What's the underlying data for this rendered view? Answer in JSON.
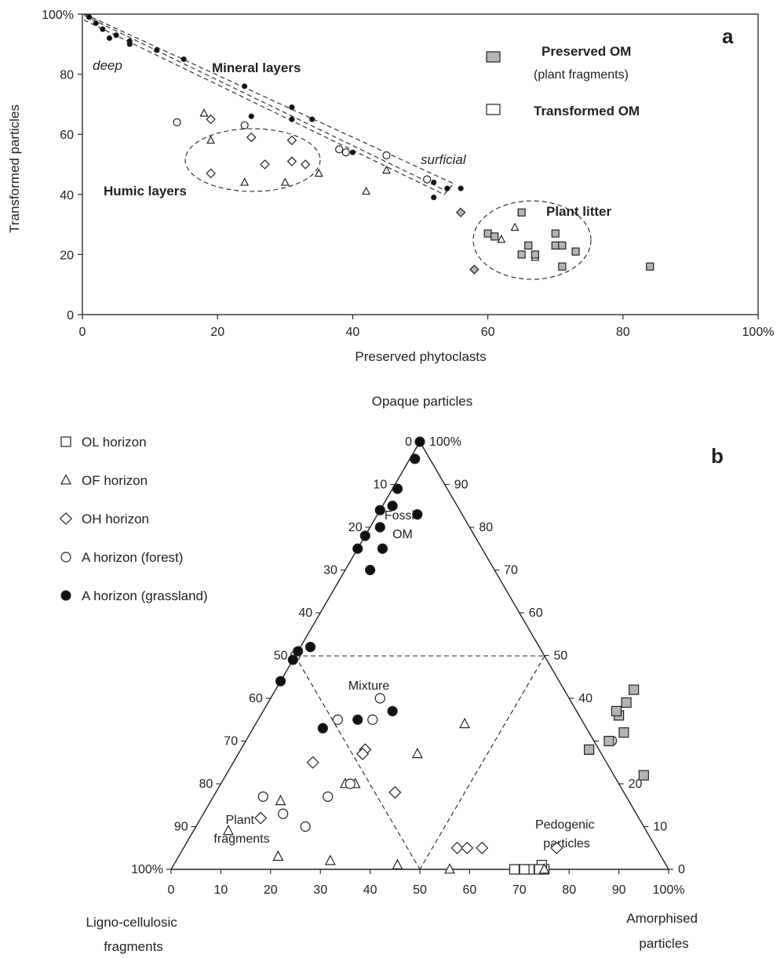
{
  "figure": {
    "panel_a_label": "a",
    "panel_b_label": "b"
  },
  "colors": {
    "ink": "#222222",
    "preserved_fill": "#b4b4b4",
    "open_fill": "#ffffff",
    "filled": "#111111"
  },
  "chart_data": [
    {
      "type": "scatter",
      "panel": "a",
      "xlabel": "Preserved phytoclasts",
      "ylabel": "Transformed particles",
      "xlim": [
        0,
        100
      ],
      "ylim": [
        0,
        100
      ],
      "x_ticks": [
        "0",
        "20",
        "40",
        "60",
        "80",
        "100%"
      ],
      "y_ticks": [
        "0",
        "20",
        "40",
        "60",
        "80",
        "100%"
      ],
      "grid": false,
      "legend": {
        "placement": "top-right",
        "entries": [
          {
            "label": "Preserved OM",
            "sublabel": "(plant fragments)",
            "marker": "square-gray"
          },
          {
            "label": "Transformed OM",
            "marker": "square-open"
          }
        ]
      },
      "annotations": {
        "mineral": "Mineral layers",
        "humic": "Humic layers",
        "litter": "Plant litter",
        "deep": "deep",
        "surficial": "surficial"
      },
      "series": [
        {
          "marker": "dot-filled",
          "points": [
            [
              1,
              99
            ],
            [
              2,
              97
            ],
            [
              3,
              95
            ],
            [
              4,
              92
            ],
            [
              5,
              93
            ],
            [
              7,
              91
            ],
            [
              7,
              90
            ],
            [
              11,
              88
            ],
            [
              15,
              85
            ],
            [
              24,
              76
            ],
            [
              25,
              66
            ],
            [
              31,
              69
            ],
            [
              31,
              65
            ],
            [
              34,
              65
            ],
            [
              40,
              54
            ],
            [
              52,
              44
            ],
            [
              52,
              39
            ],
            [
              54,
              42
            ],
            [
              56,
              42
            ]
          ]
        },
        {
          "marker": "circle-open",
          "points": [
            [
              14,
              64
            ],
            [
              24,
              63
            ],
            [
              38,
              55
            ],
            [
              39,
              54
            ],
            [
              45,
              53
            ],
            [
              51,
              45
            ]
          ]
        },
        {
          "marker": "triangle-open",
          "points": [
            [
              18,
              67
            ],
            [
              19,
              58
            ],
            [
              24,
              44
            ],
            [
              30,
              44
            ],
            [
              35,
              47
            ],
            [
              42,
              41
            ],
            [
              45,
              48
            ],
            [
              62,
              25
            ],
            [
              64,
              29
            ],
            [
              67,
              19
            ]
          ]
        },
        {
          "marker": "diamond-open",
          "points": [
            [
              19,
              65
            ],
            [
              19,
              47
            ],
            [
              25,
              59
            ],
            [
              27,
              50
            ],
            [
              31,
              58
            ],
            [
              31,
              51
            ],
            [
              33,
              50
            ]
          ]
        },
        {
          "marker": "diamond-gray",
          "points": [
            [
              56,
              34
            ],
            [
              58,
              15
            ]
          ]
        },
        {
          "marker": "square-gray",
          "points": [
            [
              60,
              27
            ],
            [
              61,
              26
            ],
            [
              65,
              20
            ],
            [
              65,
              34
            ],
            [
              66,
              23
            ],
            [
              67,
              20
            ],
            [
              70,
              27
            ],
            [
              70,
              23
            ],
            [
              71,
              16
            ],
            [
              71,
              23
            ],
            [
              73,
              21
            ],
            [
              84,
              16
            ]
          ]
        }
      ]
    },
    {
      "type": "scatter",
      "panel": "b",
      "subtype": "ternary",
      "axis_top": "Opaque particles",
      "axis_left": "Ligno-cellulosic fragments",
      "axis_right": "Amorphised particles",
      "bottom_ticks": [
        "0",
        "10",
        "20",
        "30",
        "40",
        "50",
        "60",
        "70",
        "80",
        "90",
        "100%"
      ],
      "left_ticks": [
        "0",
        "10",
        "20",
        "30",
        "40",
        "50",
        "60",
        "70",
        "80",
        "90",
        "100%"
      ],
      "right_ticks": [
        "100%",
        "90",
        "80",
        "70",
        "60",
        "50",
        "40",
        "30",
        "20",
        "10",
        "0"
      ],
      "fields": {
        "fossil": "Fossil OM",
        "mixture": "Mixture",
        "plant": "Plant fragments",
        "pedogenic": "Pedogenic particles"
      },
      "legend": {
        "placement": "top-left",
        "entries": [
          {
            "label": "OL horizon",
            "marker": "square-open"
          },
          {
            "label": "OF horizon",
            "marker": "triangle-open"
          },
          {
            "label": "OH horizon",
            "marker": "diamond-open"
          },
          {
            "label": "A horizon (forest)",
            "marker": "circle-open"
          },
          {
            "label": "A horizon (grassland)",
            "marker": "dot-filled"
          }
        ]
      },
      "series": [
        {
          "name": "OL horizon",
          "marker": "square-gray",
          "points": [
            [
              22,
              84
            ],
            [
              28,
              70
            ],
            [
              30,
              73
            ],
            [
              32,
              75
            ],
            [
              36,
              72
            ],
            [
              37,
              71
            ],
            [
              39,
              72
            ],
            [
              42,
              72
            ]
          ]
        },
        {
          "name": "OL horizon",
          "marker": "square-open",
          "points": [
            [
              0,
              75
            ],
            [
              1,
              74
            ],
            [
              0,
              74
            ],
            [
              0,
              72
            ],
            [
              0,
              71
            ],
            [
              0,
              69
            ]
          ]
        },
        {
          "name": "OF horizon",
          "marker": "triangle-open",
          "points": [
            [
              34,
              42
            ],
            [
              27,
              36
            ],
            [
              20,
              27
            ],
            [
              20,
              25
            ],
            [
              16,
              14
            ],
            [
              9,
              7
            ],
            [
              3,
              20
            ],
            [
              1,
              45
            ],
            [
              0,
              56
            ],
            [
              0,
              75
            ],
            [
              2,
              31
            ]
          ]
        },
        {
          "name": "OH horizon",
          "marker": "diamond-open",
          "points": [
            [
              28,
              25
            ],
            [
              27,
              25
            ],
            [
              18,
              36
            ],
            [
              12,
              12
            ],
            [
              25,
              16
            ],
            [
              5,
              55
            ],
            [
              5,
              57
            ],
            [
              5,
              60
            ],
            [
              5,
              75
            ]
          ]
        },
        {
          "name": "A horizon (forest)",
          "marker": "circle-open",
          "points": [
            [
              50,
              0
            ],
            [
              35,
              16
            ],
            [
              17,
              10
            ],
            [
              13,
              16
            ],
            [
              10,
              22
            ],
            [
              17,
              23
            ],
            [
              35,
              23
            ],
            [
              40,
              22
            ],
            [
              20,
              26
            ]
          ]
        },
        {
          "name": "A horizon (grassland)",
          "marker": "dot-filled",
          "points": [
            [
              100,
              0
            ],
            [
              96,
              1
            ],
            [
              89,
              1
            ],
            [
              85,
              2
            ],
            [
              84,
              0
            ],
            [
              80,
              2
            ],
            [
              78,
              0
            ],
            [
              75,
              0
            ],
            [
              83,
              8
            ],
            [
              75,
              5
            ],
            [
              70,
              5
            ],
            [
              52,
              2
            ],
            [
              49,
              0
            ],
            [
              44,
              0
            ],
            [
              51,
              0
            ],
            [
              33,
              14
            ],
            [
              35,
              20
            ],
            [
              37,
              26
            ]
          ]
        }
      ]
    }
  ]
}
